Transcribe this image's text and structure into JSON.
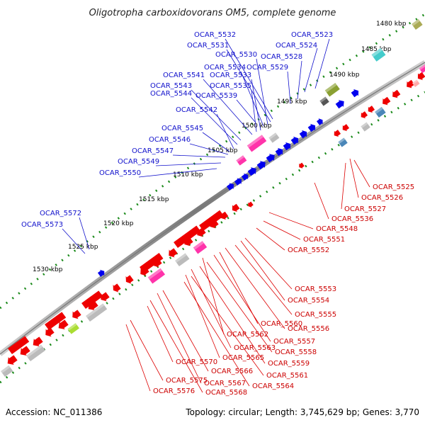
{
  "title": "Oligotropha carboxidovorans OM5, complete genome",
  "footer": {
    "accession": "Accession: NC_011386",
    "summary": "Topology: circular; Length: 3,745,629 bp; Genes: 3,770"
  },
  "colors": {
    "forward": "#0000ee",
    "reverse": "#ee0000",
    "backbone": "#8a8a8a",
    "tick": "#1a8a1a",
    "rna_pink": "#ff33aa",
    "pseudo_gray": "#bbbbbb",
    "olive": "#8aa032",
    "cyan": "#44cccc",
    "steel": "#4a86b8"
  },
  "kbp_labels": [
    "1480 kbp",
    "1485 kbp",
    "1490 kbp",
    "1495 kbp",
    "1500 kbp",
    "1505 kbp",
    "1510 kbp",
    "1515 kbp",
    "1520 kbp",
    "1525 kbp",
    "1530 kbp"
  ],
  "forward_labels": [
    "OCAR_5523",
    "OCAR_5524",
    "OCAR_5532",
    "OCAR_5531",
    "OCAR_5530",
    "OCAR_5528",
    "OCAR_5529",
    "OCAR_5534",
    "OCAR_5541",
    "OCAR_5533",
    "OCAR_5543",
    "OCAR_5535",
    "OCAR_5544",
    "OCAR_5539",
    "OCAR_5542",
    "OCAR_5545",
    "OCAR_5546",
    "OCAR_5547",
    "OCAR_5549",
    "OCAR_5550",
    "OCAR_5572",
    "OCAR_5573"
  ],
  "reverse_labels": [
    "OCAR_5525",
    "OCAR_5526",
    "OCAR_5527",
    "OCAR_5536",
    "OCAR_5548",
    "OCAR_5551",
    "OCAR_5552",
    "OCAR_5553",
    "OCAR_5554",
    "OCAR_5555",
    "OCAR_5556",
    "OCAR_5560",
    "OCAR_5557",
    "OCAR_5562",
    "OCAR_5558",
    "OCAR_5563",
    "OCAR_5559",
    "OCAR_5565",
    "OCAR_5570",
    "OCAR_5566",
    "OCAR_5561",
    "OCAR_5575",
    "OCAR_5567",
    "OCAR_5564",
    "OCAR_5576",
    "OCAR_5568"
  ]
}
